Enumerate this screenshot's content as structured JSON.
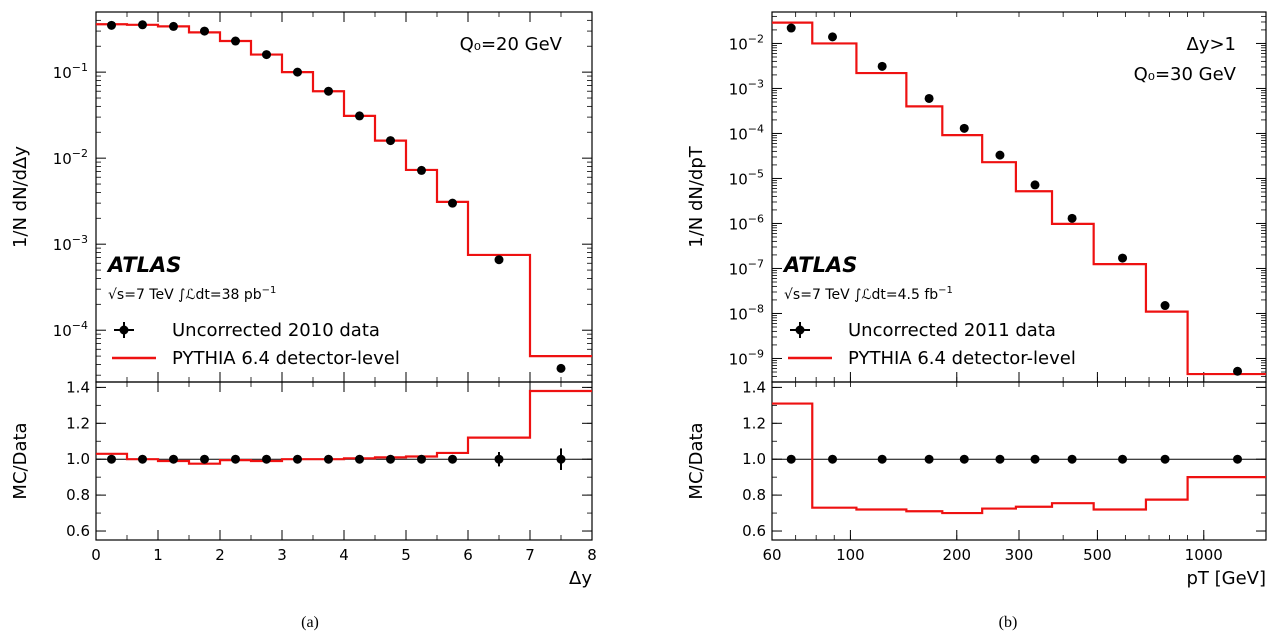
{
  "chart_data": [
    {
      "id": "a",
      "type": "line",
      "caption": "(a)",
      "experiment": "ATLAS",
      "lumi_text": [
        "√s",
        "=7 TeV",
        "∫ℒdt",
        "=38 pb",
        "−1"
      ],
      "annotations": [
        "Q₀=20 GeV"
      ],
      "xlabel": "Δy",
      "ylabel": "1/N dN/dΔy",
      "ratio_ylabel": "MC/Data",
      "xlim": [
        0,
        8
      ],
      "xscale": "linear",
      "ylim": [
        2.5e-05,
        0.5
      ],
      "yscale": "log",
      "ratio_ylim": [
        0.55,
        1.43
      ],
      "legend": {
        "placement": "lower-left",
        "entries": [
          "Uncorrected 2010 data",
          "PYTHIA 6.4 detector-level"
        ]
      },
      "x_ticks": [
        {
          "v": 0,
          "t": "0"
        },
        {
          "v": 1,
          "t": "1"
        },
        {
          "v": 2,
          "t": "2"
        },
        {
          "v": 3,
          "t": "3"
        },
        {
          "v": 4,
          "t": "4"
        },
        {
          "v": 5,
          "t": "5"
        },
        {
          "v": 6,
          "t": "6"
        },
        {
          "v": 7,
          "t": "7"
        },
        {
          "v": 8,
          "t": "8"
        }
      ],
      "y_ticks": [
        {
          "v": 0.1,
          "e": "−1"
        },
        {
          "v": 0.01,
          "e": "−2"
        },
        {
          "v": 0.001,
          "e": "−3"
        },
        {
          "v": 0.0001,
          "e": "−4"
        }
      ],
      "ratio_y_ticks": [
        {
          "v": 0.6,
          "t": "0.6"
        },
        {
          "v": 0.8,
          "t": "0.8"
        },
        {
          "v": 1.0,
          "t": "1.0"
        },
        {
          "v": 1.2,
          "t": "1.2"
        },
        {
          "v": 1.4,
          "t": "1.4"
        }
      ],
      "series": [
        {
          "name": "Uncorrected 2010 data",
          "kind": "points",
          "x": [
            0.25,
            0.75,
            1.25,
            1.75,
            2.25,
            2.75,
            3.25,
            3.75,
            4.25,
            4.75,
            5.25,
            5.75,
            6.5,
            7.5
          ],
          "y": [
            0.35,
            0.355,
            0.34,
            0.3,
            0.23,
            0.16,
            0.1,
            0.06,
            0.031,
            0.016,
            0.0072,
            0.003,
            0.00066,
            3.6e-05
          ]
        },
        {
          "name": "PYTHIA 6.4 detector-level",
          "kind": "step",
          "edges": [
            0,
            0.5,
            1,
            1.5,
            2,
            2.5,
            3,
            3.5,
            4,
            4.5,
            5,
            5.5,
            6,
            7,
            8
          ],
          "y": [
            0.36,
            0.355,
            0.34,
            0.29,
            0.23,
            0.16,
            0.1,
            0.06,
            0.031,
            0.016,
            0.0073,
            0.0031,
            0.00075,
            5e-05
          ]
        }
      ],
      "ratio": {
        "points_x": [
          0.25,
          0.75,
          1.25,
          1.75,
          2.25,
          2.75,
          3.25,
          3.75,
          4.25,
          4.75,
          5.25,
          5.75,
          6.5,
          7.5
        ],
        "points_y": [
          1,
          1,
          1,
          1,
          1,
          1,
          1,
          1,
          1,
          1,
          1,
          1,
          1,
          1
        ],
        "points_err": [
          0,
          0,
          0,
          0,
          0,
          0,
          0,
          0,
          0,
          0,
          0,
          0.02,
          0.04,
          0.06
        ],
        "edges": [
          0,
          0.5,
          1,
          1.5,
          2,
          2.5,
          3,
          3.5,
          4,
          4.5,
          5,
          5.5,
          6,
          7,
          8
        ],
        "mc": [
          1.03,
          1.0,
          0.99,
          0.975,
          0.995,
          0.99,
          1.0,
          1.0,
          1.005,
          1.01,
          1.015,
          1.035,
          1.12,
          1.38
        ]
      }
    },
    {
      "id": "b",
      "type": "line",
      "caption": "(b)",
      "experiment": "ATLAS",
      "lumi_text": [
        "√s",
        "=7 TeV",
        "∫ℒdt",
        "=4.5 fb",
        "−1"
      ],
      "annotations": [
        "Δy>1",
        "Q₀=30 GeV"
      ],
      "xlabel": "pT [GeV]",
      "ylabel": "1/N dN/dpT",
      "ratio_ylabel": "MC/Data",
      "xlim": [
        60,
        1500
      ],
      "xscale": "log",
      "ylim": [
        3e-10,
        0.05
      ],
      "yscale": "log",
      "ratio_ylim": [
        0.55,
        1.43
      ],
      "legend": {
        "placement": "lower-left",
        "entries": [
          "Uncorrected 2011 data",
          "PYTHIA 6.4 detector-level"
        ]
      },
      "x_ticks": [
        {
          "v": 60,
          "t": "60"
        },
        {
          "v": 100,
          "t": "100"
        },
        {
          "v": 200,
          "t": "200"
        },
        {
          "v": 300,
          "t": "300"
        },
        {
          "v": 500,
          "t": "500"
        },
        {
          "v": 1000,
          "t": "1000"
        }
      ],
      "y_ticks": [
        {
          "v": 0.01,
          "e": "−2"
        },
        {
          "v": 0.001,
          "e": "−3"
        },
        {
          "v": 0.0001,
          "e": "−4"
        },
        {
          "v": 1e-05,
          "e": "−5"
        },
        {
          "v": 1e-06,
          "e": "−6"
        },
        {
          "v": 1e-07,
          "e": "−7"
        },
        {
          "v": 1e-08,
          "e": "−8"
        },
        {
          "v": 1e-09,
          "e": "−9"
        }
      ],
      "ratio_y_ticks": [
        {
          "v": 0.6,
          "t": "0.6"
        },
        {
          "v": 0.8,
          "t": "0.8"
        },
        {
          "v": 1.0,
          "t": "1.0"
        },
        {
          "v": 1.2,
          "t": "1.2"
        },
        {
          "v": 1.4,
          "t": "1.4"
        }
      ],
      "series": [
        {
          "name": "Uncorrected 2011 data",
          "kind": "points",
          "x": [
            68,
            89,
            123,
            167,
            210,
            265,
            333,
            424,
            589,
            777,
            1246
          ],
          "y": [
            0.022,
            0.014,
            0.0031,
            0.0006,
            0.00013,
            3.3e-05,
            7.2e-06,
            1.3e-06,
            1.7e-07,
            1.5e-08,
            5.2e-10
          ]
        },
        {
          "name": "PYTHIA 6.4 detector-level",
          "kind": "step",
          "edges": [
            60,
            78,
            104,
            144,
            182,
            236,
            294,
            372,
            488,
            686,
            900,
            1500
          ],
          "y": [
            0.029,
            0.01,
            0.0022,
            0.0004,
            9.2e-05,
            2.3e-05,
            5.2e-06,
            9.8e-07,
            1.25e-07,
            1.1e-08,
            4.5e-10
          ]
        }
      ],
      "ratio": {
        "points_x": [
          68,
          89,
          123,
          167,
          210,
          265,
          333,
          424,
          589,
          777,
          1246
        ],
        "points_y": [
          1,
          1,
          1,
          1,
          1,
          1,
          1,
          1,
          1,
          1,
          1
        ],
        "points_err": [
          0,
          0,
          0,
          0,
          0,
          0,
          0,
          0,
          0,
          0,
          0.02
        ],
        "edges": [
          60,
          78,
          104,
          144,
          182,
          236,
          294,
          372,
          488,
          686,
          900,
          1500
        ],
        "mc": [
          1.31,
          0.73,
          0.72,
          0.71,
          0.7,
          0.725,
          0.735,
          0.755,
          0.72,
          0.775,
          0.9
        ]
      }
    }
  ],
  "colors": {
    "mc": "#ee1111",
    "data": "#000000",
    "axis": "#000000"
  }
}
